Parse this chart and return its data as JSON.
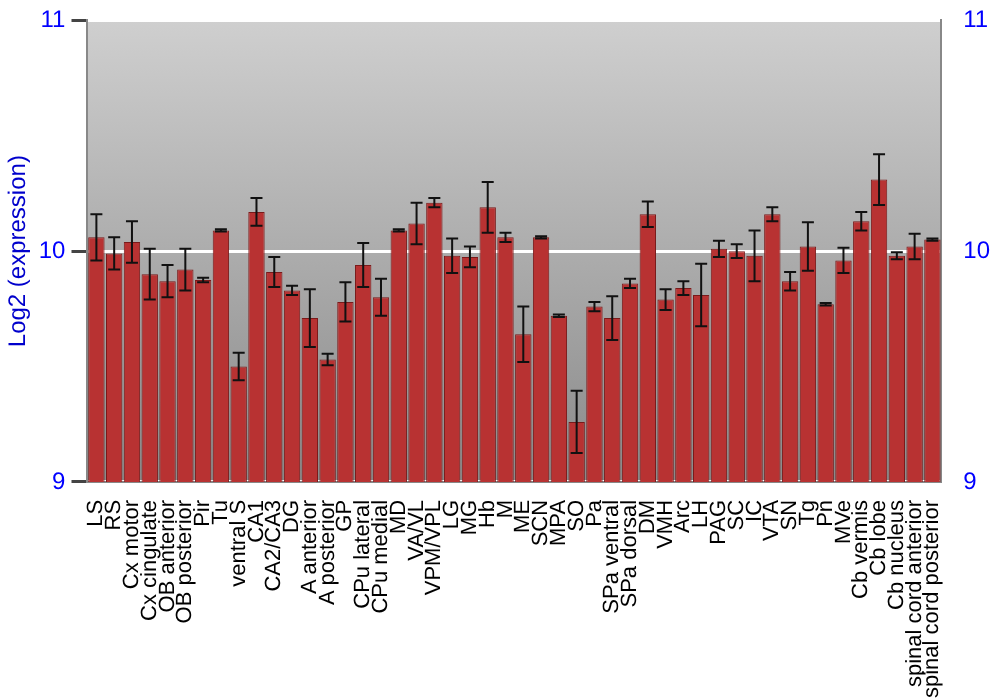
{
  "chart_data": {
    "type": "bar",
    "ylabel": "Log2 (expression)",
    "categories": [
      "LS",
      "RS",
      "Cx motor",
      "Cx cingulate",
      "OB anterior",
      "OB posterior",
      "Pir",
      "Tu",
      "ventral S",
      "CA1",
      "CA2/CA3",
      "DG",
      "A anterior",
      "A posterior",
      "GP",
      "CPu lateral",
      "CPu medial",
      "MD",
      "VA/VL",
      "VPM/VPL",
      "LG",
      "MG",
      "Hb",
      "M",
      "ME",
      "SCN",
      "MPA",
      "SO",
      "Pa",
      "SPa ventral",
      "SPa dorsal",
      "DM",
      "VMH",
      "Arc",
      "LH",
      "PAG",
      "SC",
      "IC",
      "VTA",
      "SN",
      "Tg",
      "Pn",
      "MVe",
      "Cb vermis",
      "Cb lobe",
      "Cb nucleus",
      "spinal cord anterior",
      "spinal cord posterior"
    ],
    "values": [
      10.06,
      9.99,
      10.04,
      9.9,
      9.87,
      9.92,
      9.875,
      10.09,
      9.5,
      10.17,
      9.91,
      9.83,
      9.71,
      9.53,
      9.78,
      9.94,
      9.8,
      10.09,
      10.12,
      10.21,
      9.98,
      9.975,
      10.19,
      10.06,
      9.64,
      10.06,
      9.72,
      9.26,
      9.76,
      9.71,
      9.86,
      10.16,
      9.79,
      9.84,
      9.81,
      10.01,
      10.0,
      9.98,
      10.16,
      9.87,
      10.02,
      9.77,
      9.96,
      10.13,
      10.31,
      9.98,
      10.02,
      10.05
    ],
    "errors": [
      0.1,
      0.07,
      0.09,
      0.11,
      0.07,
      0.09,
      0.01,
      0.005,
      0.06,
      0.06,
      0.065,
      0.02,
      0.125,
      0.025,
      0.085,
      0.095,
      0.08,
      0.005,
      0.09,
      0.02,
      0.075,
      0.045,
      0.11,
      0.02,
      0.12,
      0.005,
      0.005,
      0.135,
      0.02,
      0.095,
      0.02,
      0.055,
      0.045,
      0.03,
      0.135,
      0.035,
      0.03,
      0.11,
      0.03,
      0.04,
      0.105,
      0.005,
      0.055,
      0.04,
      0.11,
      0.015,
      0.055,
      0.005
    ],
    "color": "#b83232",
    "ylim": [
      9,
      11
    ],
    "yticks": [
      9,
      10,
      11
    ],
    "y2lim": [
      9,
      11
    ],
    "y2ticks": [
      9,
      10,
      11
    ],
    "grid": "y",
    "legend": false
  }
}
